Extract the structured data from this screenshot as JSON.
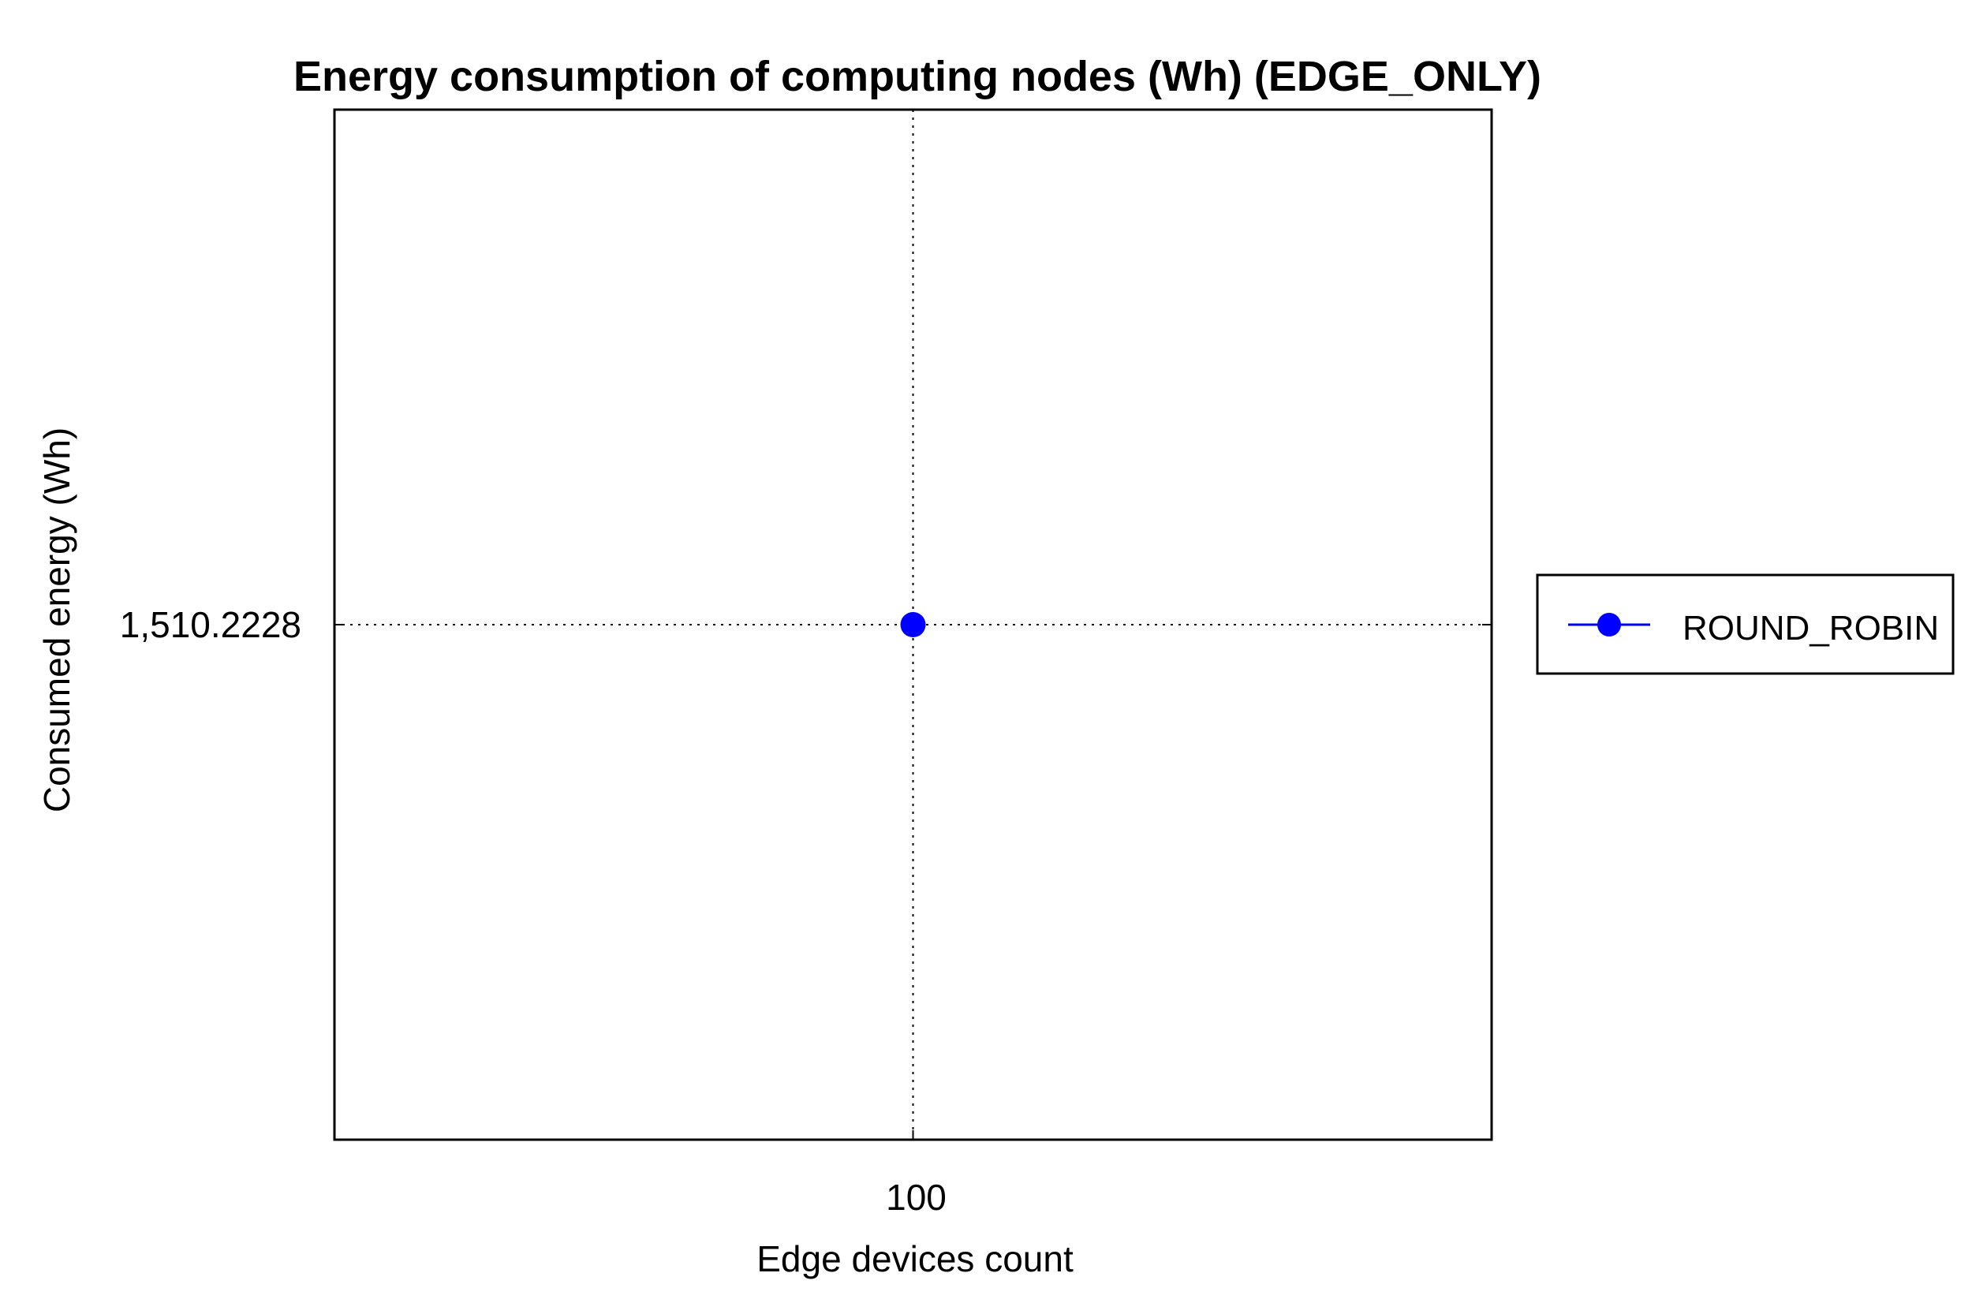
{
  "chart_data": {
    "type": "line",
    "title": "Energy consumption of computing nodes (Wh) (EDGE_ONLY)",
    "xlabel": "Edge devices count",
    "ylabel": "Consumed energy (Wh)",
    "x_ticks": [
      "100"
    ],
    "y_ticks": [
      "1,510.2228"
    ],
    "grid": true,
    "legend_position": "right",
    "series": [
      {
        "name": "ROUND_ROBIN",
        "color": "#0000ff",
        "marker": "circle",
        "x": [
          100
        ],
        "y": [
          1510.2228
        ]
      }
    ]
  }
}
